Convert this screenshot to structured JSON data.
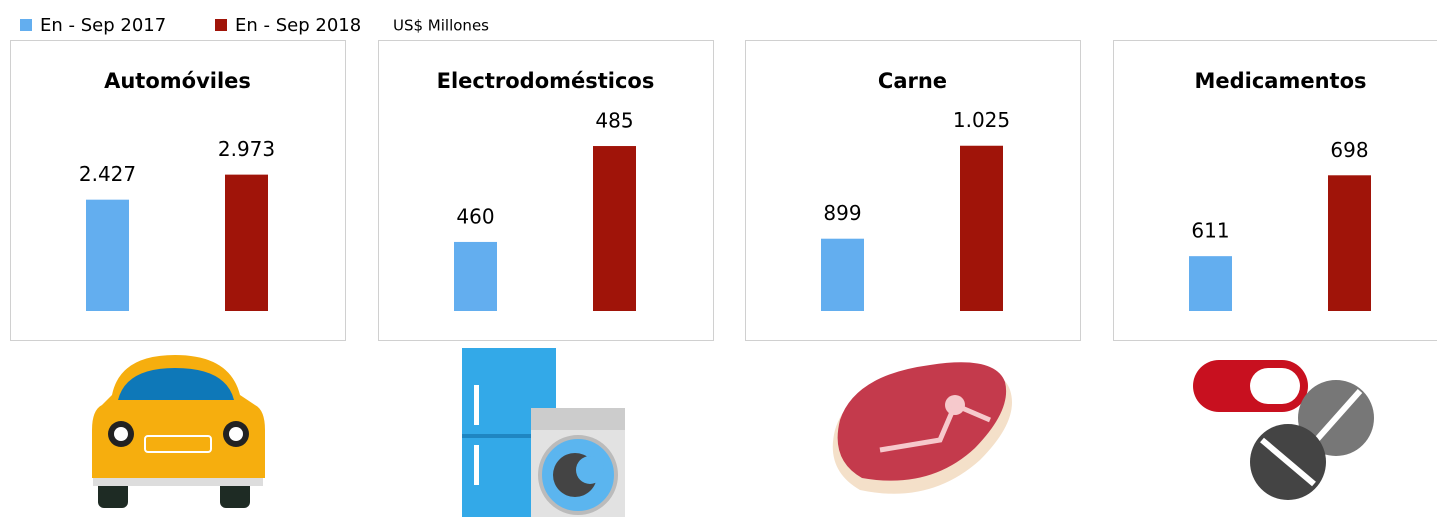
{
  "legend": {
    "series": [
      {
        "name": "En - Sep 2017",
        "color": "#63aeef"
      },
      {
        "name": "En - Sep 2018",
        "color": "#a01409"
      }
    ],
    "unit": "US$ Millones"
  },
  "chart_data": [
    {
      "type": "bar",
      "title": "Automóviles",
      "values": [
        2427,
        2973
      ],
      "value_labels": [
        "2.427",
        "2.973"
      ],
      "ylim": [
        0,
        4600
      ]
    },
    {
      "type": "bar",
      "title": "Electrodomésticos",
      "values": [
        460,
        485
      ],
      "value_labels": [
        "460",
        "485"
      ],
      "ylim": [
        442,
        497
      ]
    },
    {
      "type": "bar",
      "title": "Carne",
      "values": [
        899,
        1025
      ],
      "value_labels": [
        "899",
        "1.025"
      ],
      "ylim": [
        801,
        1087
      ]
    },
    {
      "type": "bar",
      "title": "Medicamentos",
      "values": [
        611,
        698
      ],
      "value_labels": [
        "611",
        "698"
      ],
      "ylim": [
        552,
        779
      ]
    }
  ]
}
